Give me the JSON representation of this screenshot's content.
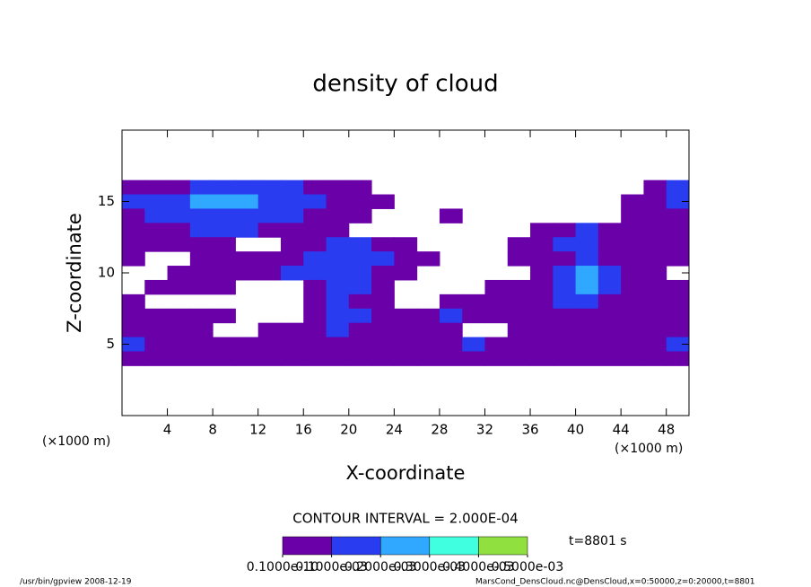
{
  "chart_data": {
    "type": "contour",
    "title": "density of cloud",
    "x_label": "X-coordinate",
    "y_label": "Z-coordinate",
    "x_unit": "(×1000 m)",
    "xlim": [
      0,
      50
    ],
    "ylim": [
      0,
      20
    ],
    "xticks": [
      4,
      8,
      12,
      16,
      20,
      24,
      28,
      32,
      36,
      40,
      44,
      48
    ],
    "yticks": [
      5,
      10,
      15
    ],
    "x": [
      1,
      3,
      5,
      7,
      9,
      11,
      13,
      15,
      17,
      19,
      21,
      23,
      25,
      27,
      29,
      31,
      33,
      35,
      37,
      39,
      41,
      43,
      45,
      47,
      49
    ],
    "y": [
      16,
      15,
      14,
      13,
      12,
      11,
      10,
      9,
      8,
      7,
      6,
      5,
      4
    ],
    "z": [
      [
        5e-05,
        5e-05,
        5e-05,
        0.00015,
        0.00015,
        0.00015,
        0.00015,
        0.00015,
        5e-05,
        5e-05,
        5e-05,
        0,
        0,
        0,
        0,
        0,
        0,
        0,
        0,
        0,
        0,
        0,
        0,
        5e-05,
        0.00015
      ],
      [
        0.00015,
        0.00015,
        0.00015,
        0.00025,
        0.00025,
        0.00025,
        0.00015,
        0.00015,
        0.00015,
        5e-05,
        5e-05,
        5e-05,
        0,
        0,
        0,
        0,
        0,
        0,
        0,
        0,
        0,
        0,
        5e-05,
        5e-05,
        0.00015
      ],
      [
        5e-05,
        0.00015,
        0.00015,
        0.00015,
        0.00015,
        0.00015,
        0.00015,
        0.00015,
        5e-05,
        5e-05,
        5e-05,
        0,
        0,
        0,
        5e-05,
        0,
        0,
        0,
        0,
        0,
        0,
        0,
        5e-05,
        5e-05,
        5e-05
      ],
      [
        5e-05,
        5e-05,
        5e-05,
        0.00015,
        0.00015,
        0.00015,
        5e-05,
        5e-05,
        5e-05,
        5e-05,
        0,
        0,
        0,
        0,
        0,
        0,
        0,
        0,
        5e-05,
        5e-05,
        0.00015,
        5e-05,
        5e-05,
        5e-05,
        5e-05
      ],
      [
        5e-05,
        5e-05,
        5e-05,
        5e-05,
        5e-05,
        0,
        0,
        5e-05,
        5e-05,
        0.00015,
        0.00015,
        5e-05,
        5e-05,
        0,
        0,
        0,
        0,
        5e-05,
        5e-05,
        0.00015,
        0.00015,
        5e-05,
        5e-05,
        5e-05,
        5e-05
      ],
      [
        5e-05,
        0,
        0,
        5e-05,
        5e-05,
        5e-05,
        5e-05,
        5e-05,
        0.00015,
        0.00015,
        0.00015,
        0.00015,
        5e-05,
        5e-05,
        0,
        0,
        0,
        5e-05,
        5e-05,
        5e-05,
        0.00015,
        5e-05,
        5e-05,
        5e-05,
        5e-05
      ],
      [
        0,
        0,
        5e-05,
        5e-05,
        5e-05,
        5e-05,
        5e-05,
        0.00015,
        0.00015,
        0.00015,
        0.00015,
        5e-05,
        5e-05,
        0,
        0,
        0,
        0,
        0,
        5e-05,
        0.00015,
        0.00025,
        0.00015,
        5e-05,
        5e-05,
        0
      ],
      [
        0,
        5e-05,
        5e-05,
        5e-05,
        5e-05,
        0,
        0,
        0,
        5e-05,
        0.00015,
        0.00015,
        5e-05,
        0,
        0,
        0,
        0,
        5e-05,
        5e-05,
        5e-05,
        0.00015,
        0.00025,
        0.00015,
        5e-05,
        5e-05,
        5e-05
      ],
      [
        5e-05,
        0,
        0,
        0,
        0,
        0,
        0,
        0,
        5e-05,
        0.00015,
        5e-05,
        5e-05,
        0,
        0,
        5e-05,
        5e-05,
        5e-05,
        5e-05,
        5e-05,
        0.00015,
        0.00015,
        5e-05,
        5e-05,
        5e-05,
        5e-05
      ],
      [
        5e-05,
        5e-05,
        5e-05,
        5e-05,
        5e-05,
        0,
        0,
        0,
        5e-05,
        0.00015,
        0.00015,
        5e-05,
        5e-05,
        5e-05,
        0.00015,
        5e-05,
        5e-05,
        5e-05,
        5e-05,
        5e-05,
        5e-05,
        5e-05,
        5e-05,
        5e-05,
        5e-05
      ],
      [
        5e-05,
        5e-05,
        5e-05,
        5e-05,
        0,
        0,
        5e-05,
        5e-05,
        5e-05,
        0.00015,
        5e-05,
        5e-05,
        5e-05,
        5e-05,
        5e-05,
        0,
        0,
        5e-05,
        5e-05,
        5e-05,
        5e-05,
        5e-05,
        5e-05,
        5e-05,
        5e-05
      ],
      [
        0.00015,
        5e-05,
        5e-05,
        5e-05,
        5e-05,
        5e-05,
        5e-05,
        5e-05,
        5e-05,
        5e-05,
        5e-05,
        5e-05,
        5e-05,
        5e-05,
        5e-05,
        0.00015,
        5e-05,
        5e-05,
        5e-05,
        5e-05,
        5e-05,
        5e-05,
        5e-05,
        5e-05,
        0.00015
      ],
      [
        5e-05,
        5e-05,
        5e-05,
        5e-05,
        5e-05,
        5e-05,
        5e-05,
        5e-05,
        5e-05,
        5e-05,
        5e-05,
        5e-05,
        5e-05,
        5e-05,
        5e-05,
        5e-05,
        5e-05,
        5e-05,
        5e-05,
        5e-05,
        5e-05,
        5e-05,
        5e-05,
        5e-05,
        5e-05
      ]
    ],
    "levels": [
      {
        "value": 1e-11,
        "label": "0.1000e-10"
      },
      {
        "value": 0.0001,
        "label": "0.1000e-03"
      },
      {
        "value": 0.0002,
        "label": "0.2000e-03"
      },
      {
        "value": 0.0003,
        "label": "0.3000e-03"
      },
      {
        "value": 0.0004,
        "label": "0.4000e-03"
      },
      {
        "value": 0.0005,
        "label": "0.5000e-03"
      }
    ],
    "colors": [
      "#6a00a8",
      "#2a3cf0",
      "#30a8ff",
      "#40ffe0",
      "#90e040"
    ],
    "contour_interval": "CONTOUR INTERVAL = 2.000E-04",
    "time": "t=8801 s",
    "footer_left": "/usr/bin/gpview  2008-12-19",
    "footer_right": "MarsCond_DensCloud.nc@DensCloud,x=0:50000,z=0:20000,t=8801"
  }
}
